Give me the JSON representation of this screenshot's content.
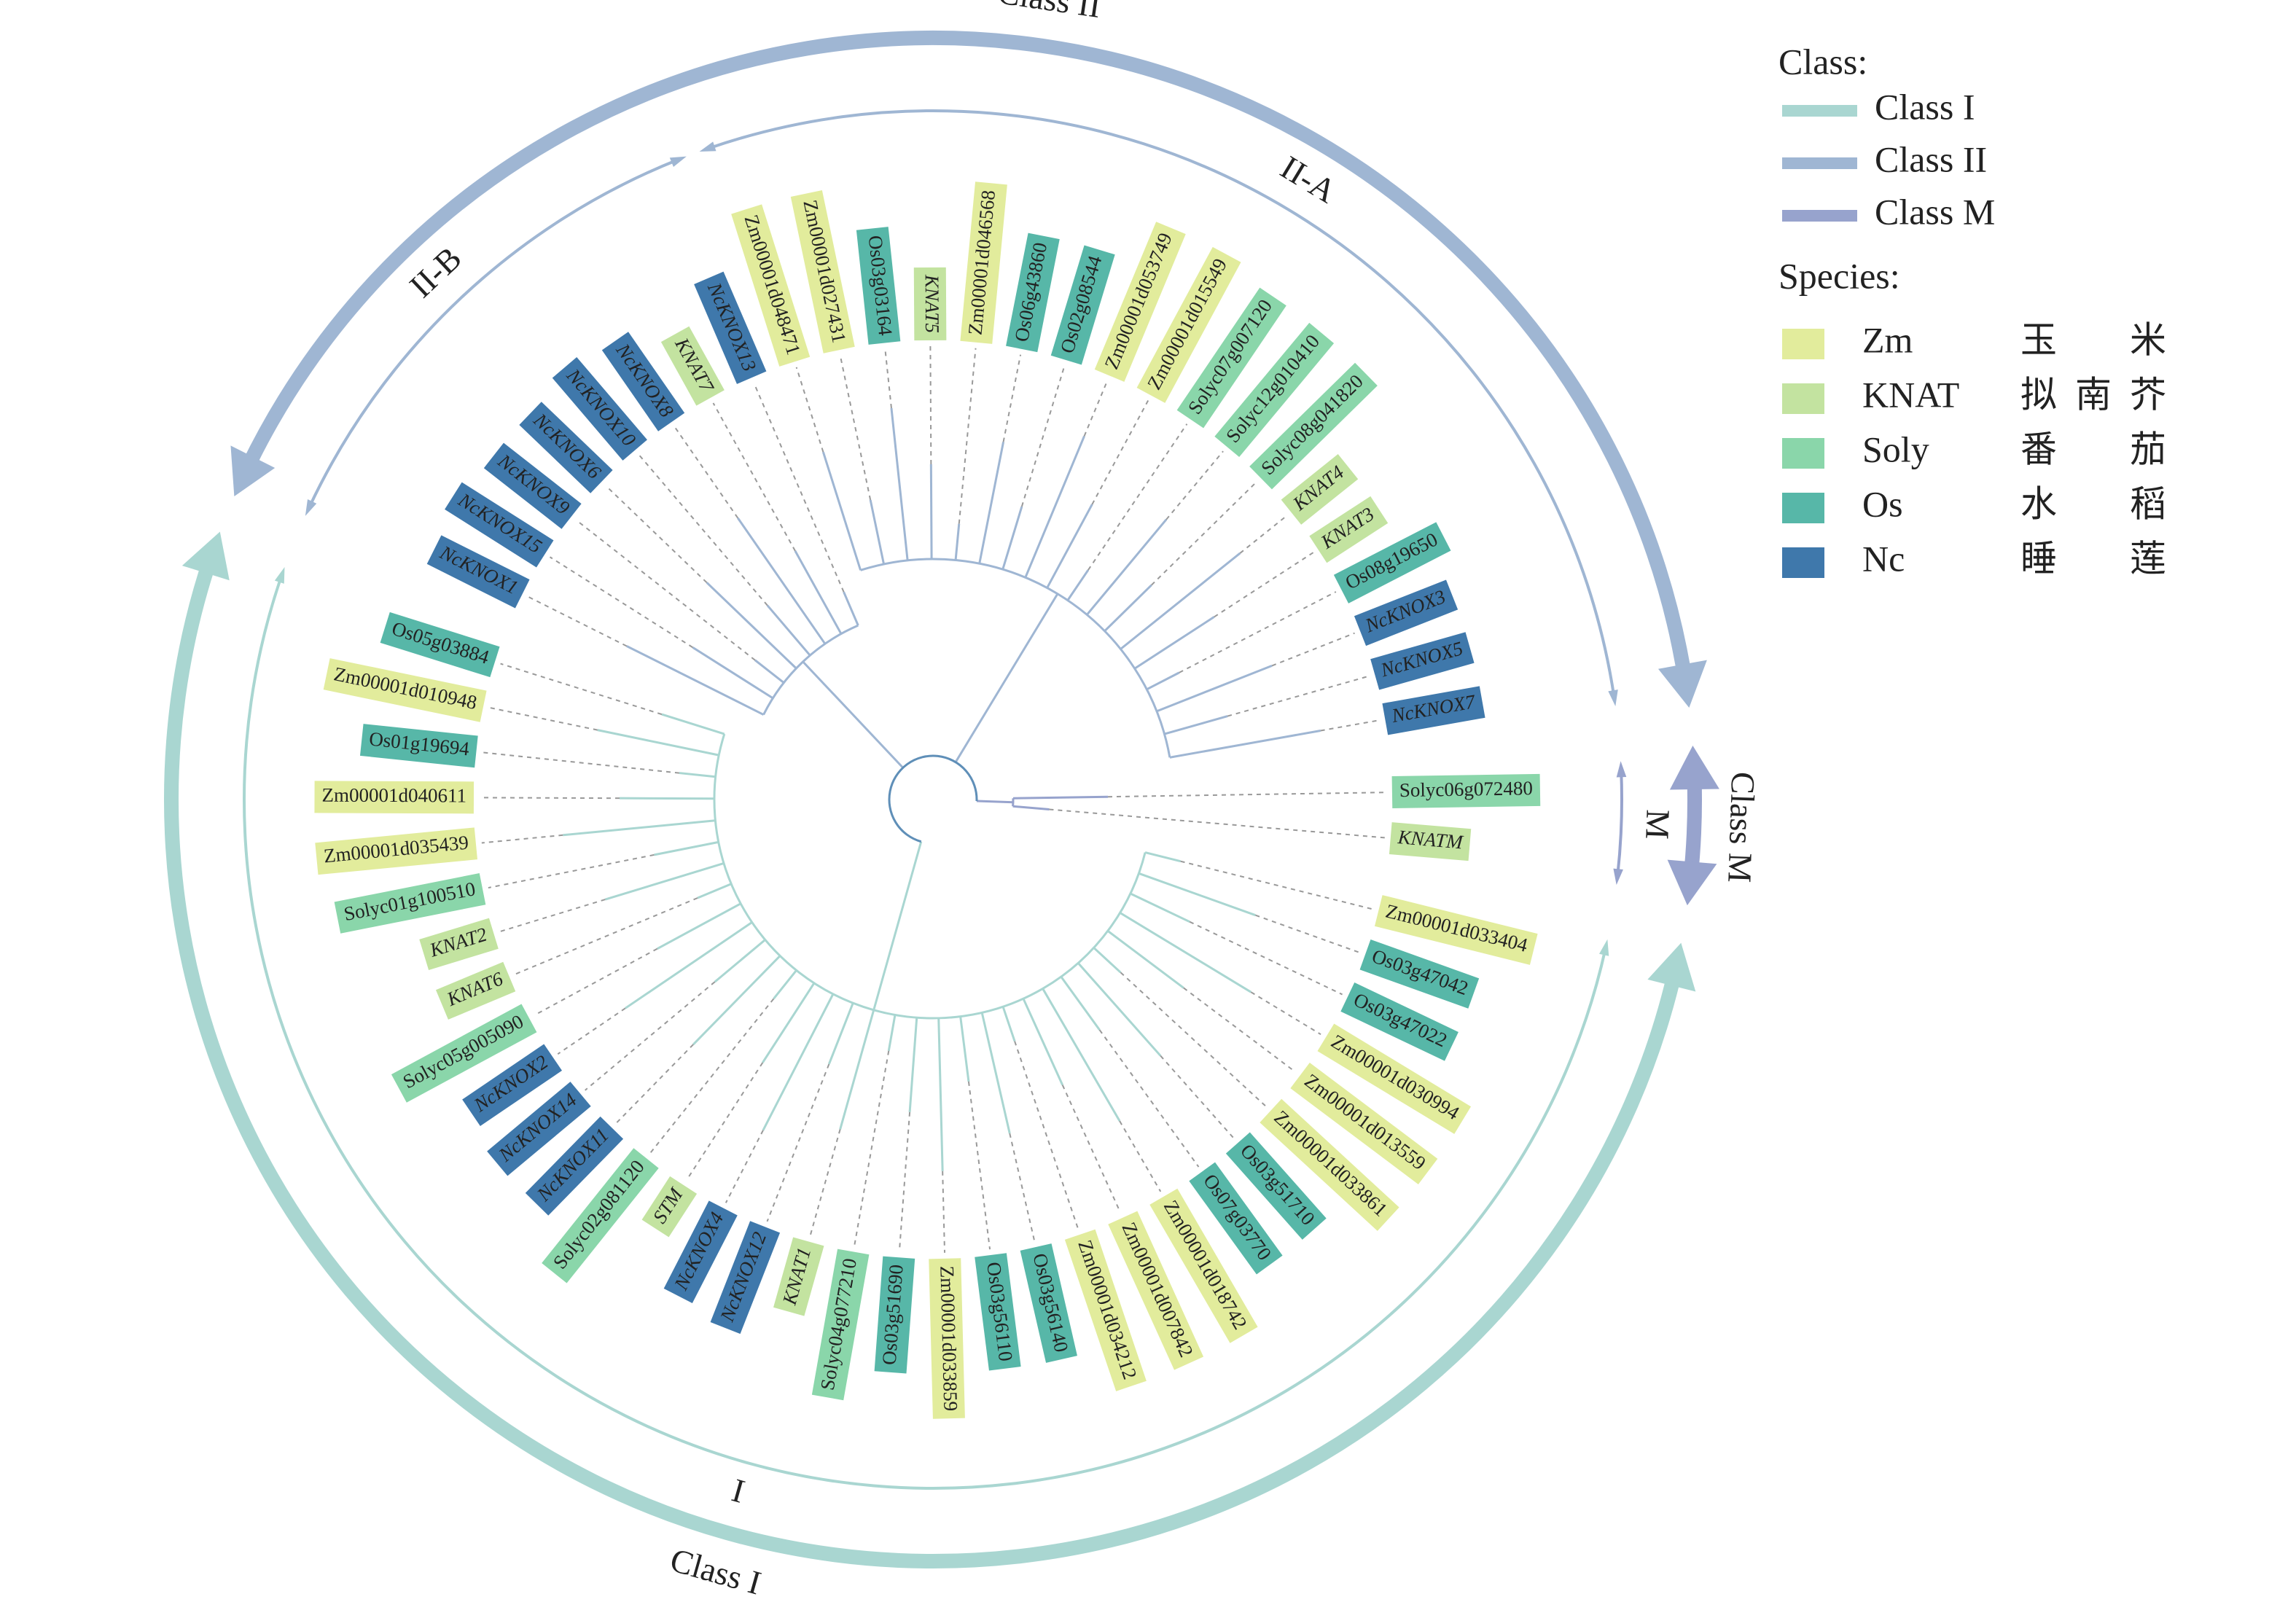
{
  "legend": {
    "class_title": "Class:",
    "species_title": "Species:",
    "species": [
      {
        "code": "Zm",
        "name": "玉米",
        "color": "#e2ec9c"
      },
      {
        "code": "KNAT",
        "name": "拟南芥",
        "color": "#c3e3a0"
      },
      {
        "code": "Soly",
        "name": "番茄",
        "color": "#8ad6aa"
      },
      {
        "code": "Os",
        "name": "水稻",
        "color": "#57b7a8"
      },
      {
        "code": "Nc",
        "name": "睡莲",
        "color": "#3f78ab"
      }
    ]
  },
  "classes": [
    {
      "name": "Class I",
      "color": "#a9d6d1",
      "subclades": [
        {
          "label": "I",
          "leaves": [
            {
              "name": "Zm00001d033404",
              "species": "Zm"
            },
            {
              "name": "Os03g47042",
              "species": "Os"
            },
            {
              "name": "Os03g47022",
              "species": "Os"
            },
            {
              "name": "Zm00001d030994",
              "species": "Zm"
            },
            {
              "name": "Zm00001d013559",
              "species": "Zm"
            },
            {
              "name": "Zm00001d033861",
              "species": "Zm"
            },
            {
              "name": "Os03g51710",
              "species": "Os"
            },
            {
              "name": "Os07g03770",
              "species": "Os"
            },
            {
              "name": "Zm00001d018742",
              "species": "Zm"
            },
            {
              "name": "Zm00001d007842",
              "species": "Zm"
            },
            {
              "name": "Zm00001d034212",
              "species": "Zm"
            },
            {
              "name": "Os03g56140",
              "species": "Os"
            },
            {
              "name": "Os03g56110",
              "species": "Os"
            },
            {
              "name": "Zm00001d033859",
              "species": "Zm"
            },
            {
              "name": "Os03g51690",
              "species": "Os"
            },
            {
              "name": "Solyc04g077210",
              "species": "Soly"
            },
            {
              "name": "KNAT1",
              "species": "KNAT"
            },
            {
              "name": "NcKNOX12",
              "species": "Nc"
            },
            {
              "name": "NcKNOX4",
              "species": "Nc"
            },
            {
              "name": "STM",
              "species": "KNAT"
            },
            {
              "name": "Solyc02g081120",
              "species": "Soly"
            },
            {
              "name": "NcKNOX11",
              "species": "Nc"
            },
            {
              "name": "NcKNOX14",
              "species": "Nc"
            },
            {
              "name": "NcKNOX2",
              "species": "Nc"
            },
            {
              "name": "Solyc05g005090",
              "species": "Soly"
            },
            {
              "name": "KNAT6",
              "species": "KNAT"
            },
            {
              "name": "KNAT2",
              "species": "KNAT"
            },
            {
              "name": "Solyc01g100510",
              "species": "Soly"
            },
            {
              "name": "Zm00001d035439",
              "species": "Zm"
            },
            {
              "name": "Zm00001d040611",
              "species": "Zm"
            },
            {
              "name": "Os01g19694",
              "species": "Os"
            },
            {
              "name": "Zm00001d010948",
              "species": "Zm"
            },
            {
              "name": "Os05g03884",
              "species": "Os"
            }
          ]
        }
      ]
    },
    {
      "name": "Class II",
      "color": "#9fb6d3",
      "subclades": [
        {
          "label": "II-B",
          "leaves": [
            {
              "name": "NcKNOX1",
              "species": "Nc"
            },
            {
              "name": "NcKNOX15",
              "species": "Nc"
            },
            {
              "name": "NcKNOX9",
              "species": "Nc"
            },
            {
              "name": "NcKNOX6",
              "species": "Nc"
            },
            {
              "name": "NcKNOX10",
              "species": "Nc"
            },
            {
              "name": "NcKNOX8",
              "species": "Nc"
            },
            {
              "name": "KNAT7",
              "species": "KNAT"
            },
            {
              "name": "NcKNOX13",
              "species": "Nc"
            }
          ]
        },
        {
          "label": "II-A",
          "leaves": [
            {
              "name": "Zm00001d048471",
              "species": "Zm"
            },
            {
              "name": "Zm00001d027431",
              "species": "Zm"
            },
            {
              "name": "Os03g03164",
              "species": "Os"
            },
            {
              "name": "KNAT5",
              "species": "KNAT"
            },
            {
              "name": "Zm00001d046568",
              "species": "Zm"
            },
            {
              "name": "Os06g43860",
              "species": "Os"
            },
            {
              "name": "Os02g08544",
              "species": "Os"
            },
            {
              "name": "Zm00001d053749",
              "species": "Zm"
            },
            {
              "name": "Zm00001d015549",
              "species": "Zm"
            },
            {
              "name": "Solyc07g007120",
              "species": "Soly"
            },
            {
              "name": "Solyc12g010410",
              "species": "Soly"
            },
            {
              "name": "Solyc08g041820",
              "species": "Soly"
            },
            {
              "name": "KNAT4",
              "species": "KNAT"
            },
            {
              "name": "KNAT3",
              "species": "KNAT"
            },
            {
              "name": "Os08g19650",
              "species": "Os"
            },
            {
              "name": "NcKNOX3",
              "species": "Nc"
            },
            {
              "name": "NcKNOX5",
              "species": "Nc"
            },
            {
              "name": "NcKNOX7",
              "species": "Nc"
            }
          ]
        }
      ]
    },
    {
      "name": "Class M",
      "color": "#97a3cd",
      "subclades": [
        {
          "label": "M",
          "leaves": [
            {
              "name": "Solyc06g072480",
              "species": "Soly"
            },
            {
              "name": "KNATM",
              "species": "KNAT"
            }
          ]
        }
      ]
    }
  ]
}
